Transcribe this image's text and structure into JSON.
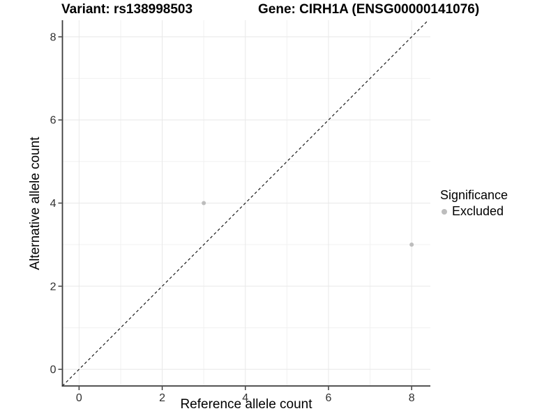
{
  "titles": {
    "variant": "Variant: rs138998503",
    "gene": "Gene: CIRH1A (ENSG00000141076)"
  },
  "axes": {
    "x": {
      "label": "Reference allele count"
    },
    "y": {
      "label": "Alternative allele count"
    }
  },
  "legend": {
    "title": "Significance",
    "items": [
      {
        "label": "Excluded",
        "color": "#bdbdbd"
      }
    ]
  },
  "chart_data": {
    "type": "scatter",
    "title": "Variant: rs138998503    Gene: CIRH1A (ENSG00000141076)",
    "xlabel": "Reference allele count",
    "ylabel": "Alternative allele count",
    "xlim": [
      -0.4,
      8.45
    ],
    "ylim": [
      -0.4,
      8.4
    ],
    "x_ticks": [
      0,
      2,
      4,
      6,
      8
    ],
    "y_ticks": [
      0,
      2,
      4,
      6,
      8
    ],
    "x_minor": [
      1,
      3,
      5,
      7
    ],
    "y_minor": [
      1,
      3,
      5,
      7
    ],
    "grid": "on",
    "legend_position": "right",
    "series": [
      {
        "name": "Excluded",
        "color": "#bdbdbd",
        "points": [
          {
            "x": 3,
            "y": 4
          },
          {
            "x": 8,
            "y": 3
          }
        ]
      }
    ],
    "reference_line": {
      "type": "identity y=x",
      "style": "dashed",
      "color": "#1a1a1a"
    }
  },
  "colors": {
    "background": "#ffffff",
    "grid_major": "#e8e8e8",
    "grid_minor": "#f1f1f1",
    "axis_line": "#3c3c3c",
    "tick_mark": "#333333",
    "tick_text": "#303030",
    "identity_line": "#1a1a1a",
    "point": "#bdbdbd"
  }
}
